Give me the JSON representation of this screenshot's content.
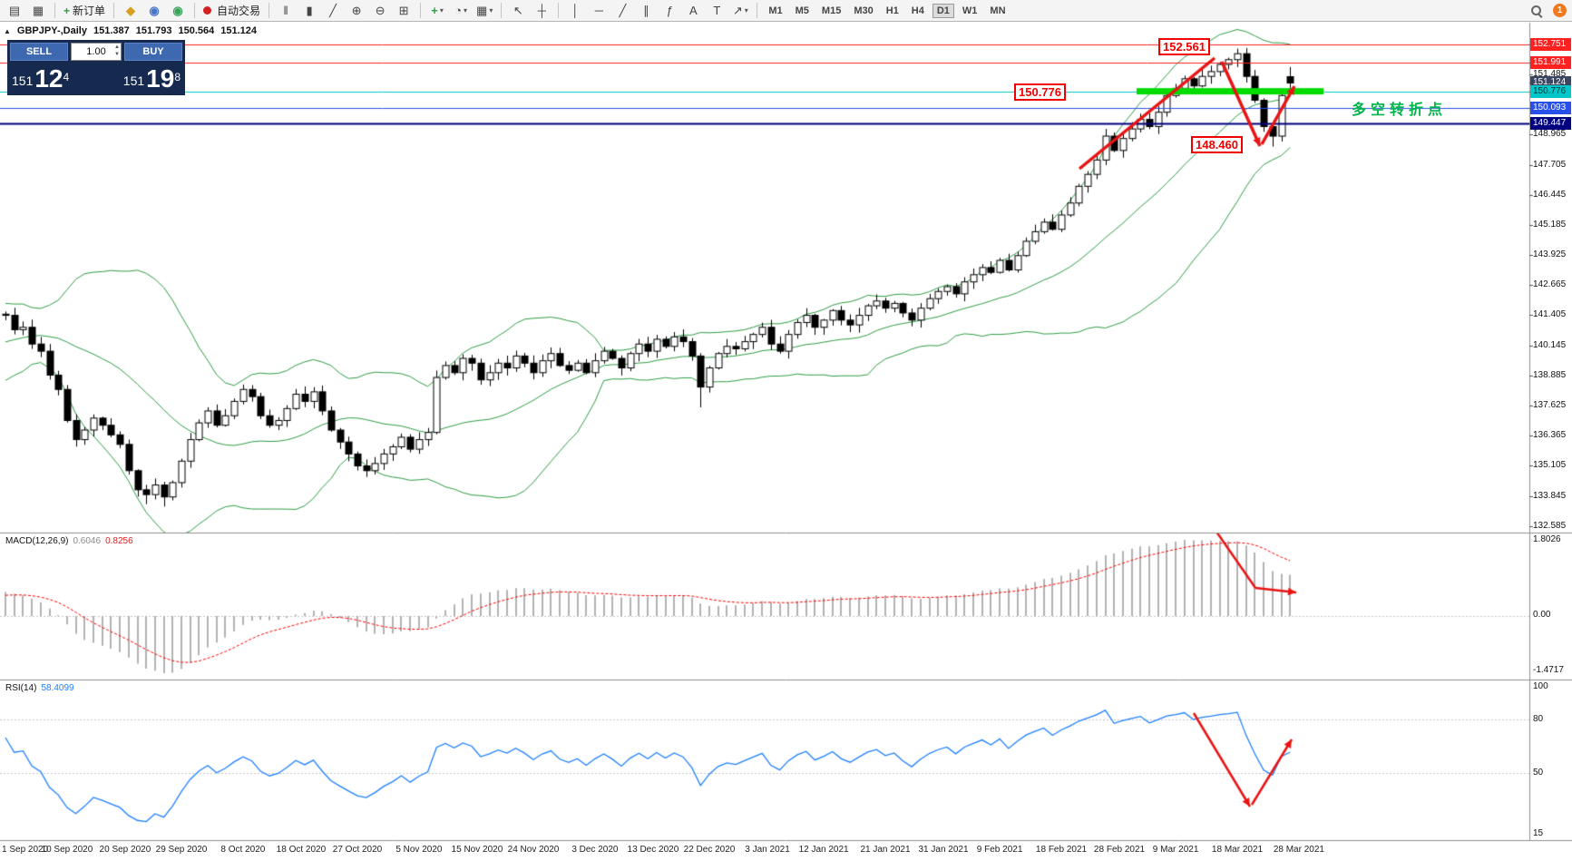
{
  "header": {
    "collapse_icon": "▲",
    "symbol": "GBPJPY-,Daily",
    "open": "151.387",
    "high": "151.793",
    "low": "150.564",
    "close": "151.124"
  },
  "trade_panel": {
    "sell_label": "SELL",
    "buy_label": "BUY",
    "volume": "1.00",
    "sell_price": {
      "prefix": "151",
      "big": "12",
      "sup": "4"
    },
    "buy_price": {
      "prefix": "151",
      "big": "19",
      "sup": "8"
    }
  },
  "annotations": {
    "peak_price": "152.561",
    "support_price": "150.776",
    "pullback_low": "148.460",
    "turning_point_text": "多空转折点"
  },
  "indicators": {
    "macd": {
      "name": "MACD(12,26,9)",
      "main_value": "0.6046",
      "signal_value": "0.8256",
      "scale_max": "1.8026",
      "scale_zero": "0.00",
      "scale_min": "-1.4717"
    },
    "rsi": {
      "name": "RSI(14)",
      "value": "58.4099",
      "scale_labels": [
        {
          "label": "100",
          "value": 100
        },
        {
          "label": "80",
          "value": 80
        },
        {
          "label": "50",
          "value": 50
        },
        {
          "label": "15",
          "value": 15
        }
      ]
    }
  },
  "price_scale": {
    "ticks": [
      151.485,
      148.965,
      147.705,
      146.445,
      145.185,
      143.925,
      142.665,
      141.405,
      140.145,
      138.885,
      137.625,
      136.365,
      135.105,
      133.845,
      132.585
    ],
    "badges": [
      {
        "label": "152.751",
        "price": 152.751,
        "bg": "#ff2020",
        "fg": "#ffffff"
      },
      {
        "label": "151.991",
        "price": 151.991,
        "bg": "#ff2020",
        "fg": "#ffffff"
      },
      {
        "label": "151.124",
        "price": 151.124,
        "bg": "#3a4663",
        "fg": "#ffffff"
      },
      {
        "label": "150.776",
        "price": 150.776,
        "bg": "#00c8c8",
        "fg": "#003333"
      },
      {
        "label": "150.093",
        "price": 150.093,
        "bg": "#2850e8",
        "fg": "#ffffff"
      },
      {
        "label": "149.447",
        "price": 149.447,
        "bg": "#000080",
        "fg": "#ffffff"
      }
    ]
  },
  "toolbar": {
    "window_icons": [
      {
        "name": "chart-window-icon",
        "glyph": "▤"
      },
      {
        "name": "new-chart-icon",
        "glyph": "▦"
      }
    ],
    "new_order": {
      "icon": "+",
      "label": "新订单"
    },
    "app_icons": [
      {
        "name": "history-center-icon",
        "glyph": "◆",
        "color": "#d8a020"
      },
      {
        "name": "accounts-icon",
        "glyph": "◉",
        "color": "#4a76c8"
      },
      {
        "name": "refresh-icon",
        "glyph": "◉",
        "color": "#3aa35a"
      }
    ],
    "autotrading": {
      "label": "自动交易"
    },
    "chart_type_icons": [
      {
        "name": "ohlc-bars-icon",
        "glyph": "‖"
      },
      {
        "name": "candlestick-chart-icon",
        "glyph": "▮"
      },
      {
        "name": "line-chart-icon",
        "glyph": "╱"
      }
    ],
    "zoom_icons": [
      {
        "name": "zoom-in-icon",
        "glyph": "⊕"
      },
      {
        "name": "zoom-out-icon",
        "glyph": "⊖"
      }
    ],
    "tile_icon": {
      "name": "tile-windows-icon",
      "glyph": "⊞"
    },
    "insert_icons": [
      {
        "name": "indicators-icon",
        "glyph": "+",
        "color": "#2da044",
        "caret": true
      },
      {
        "name": "periods-icon",
        "glyph": "◔",
        "caret": true
      },
      {
        "name": "templates-icon",
        "glyph": "▦",
        "caret": true
      }
    ],
    "cursor_icons": [
      {
        "name": "cursor-icon",
        "glyph": "↖"
      },
      {
        "name": "crosshair-icon",
        "glyph": "┼"
      }
    ],
    "draw_icons": [
      {
        "name": "vertical-line-icon",
        "glyph": "│"
      },
      {
        "name": "horizontal-line-icon",
        "glyph": "─"
      },
      {
        "name": "trendline-icon",
        "glyph": "╱"
      },
      {
        "name": "channel-icon",
        "glyph": "∥"
      },
      {
        "name": "fibonacci-icon",
        "glyph": "ƒ"
      },
      {
        "name": "text-icon",
        "glyph": "A"
      },
      {
        "name": "label-icon",
        "glyph": "T"
      },
      {
        "name": "arrows-icon",
        "glyph": "↗",
        "caret": true
      }
    ],
    "timeframes": [
      "M1",
      "M5",
      "M15",
      "M30",
      "H1",
      "H4",
      "D1",
      "W1",
      "MN"
    ],
    "active_timeframe": "D1",
    "notification_count": "1"
  },
  "chart_data": {
    "type": "candlestick",
    "symbol": "GBPJPY-",
    "timeframe": "Daily",
    "current_bar": {
      "open": 151.387,
      "high": 151.793,
      "low": 150.564,
      "close": 151.124
    },
    "warmup_closes": [
      138.6,
      138.9,
      139.2,
      138.8,
      139.5,
      139.9,
      139.6,
      140.2,
      140.0,
      139.7,
      140.3,
      140.6,
      140.2,
      140.8,
      141.0,
      140.7,
      141.2,
      141.0,
      141.3,
      141.45
    ],
    "closes": [
      141.4,
      140.8,
      140.9,
      140.2,
      139.9,
      138.9,
      138.3,
      137.0,
      136.2,
      136.6,
      137.1,
      136.8,
      136.4,
      136.0,
      134.9,
      134.1,
      133.9,
      134.3,
      133.8,
      134.4,
      135.3,
      136.2,
      136.9,
      137.4,
      136.8,
      137.2,
      137.8,
      138.3,
      138.0,
      137.2,
      136.8,
      137.0,
      137.5,
      138.1,
      137.8,
      138.2,
      137.4,
      136.6,
      136.1,
      135.6,
      135.1,
      134.9,
      135.2,
      135.6,
      135.9,
      136.3,
      135.8,
      136.2,
      136.5,
      138.8,
      139.3,
      139.0,
      139.6,
      139.4,
      138.7,
      139.0,
      139.4,
      139.2,
      139.7,
      139.4,
      139.0,
      139.5,
      139.8,
      139.3,
      139.1,
      139.4,
      139.0,
      139.5,
      139.9,
      139.6,
      139.2,
      139.8,
      140.2,
      139.9,
      140.4,
      140.1,
      140.5,
      140.3,
      139.7,
      138.4,
      139.2,
      139.8,
      140.1,
      140.0,
      140.3,
      140.6,
      140.9,
      140.2,
      139.9,
      140.6,
      141.1,
      141.4,
      140.9,
      141.2,
      141.6,
      141.2,
      141.0,
      141.4,
      141.8,
      142.0,
      141.7,
      141.9,
      141.5,
      141.2,
      141.7,
      142.1,
      142.4,
      142.6,
      142.3,
      142.8,
      143.1,
      143.4,
      143.2,
      143.7,
      143.3,
      143.9,
      144.5,
      144.9,
      145.3,
      145.0,
      145.6,
      146.1,
      146.8,
      147.3,
      147.9,
      148.9,
      148.3,
      148.8,
      149.2,
      149.6,
      149.3,
      149.9,
      150.6,
      150.9,
      151.3,
      151.0,
      151.4,
      151.6,
      151.9,
      152.1,
      152.35,
      151.4,
      150.4,
      149.3,
      148.9,
      150.6,
      151.124
    ],
    "overrides": {
      "16": {
        "low": 133.5
      },
      "18": {
        "low": 133.4
      },
      "79": {
        "low": 137.55
      },
      "140": {
        "high": 152.561
      },
      "144": {
        "low": 148.46
      },
      "146": {
        "open": 151.387,
        "high": 151.793,
        "low": 150.564,
        "close": 151.124
      }
    },
    "bollinger": {
      "period": 20,
      "deviation": 2
    },
    "levels": [
      {
        "price": 152.751,
        "color": "#ff2020",
        "width": 1
      },
      {
        "price": 151.991,
        "color": "#ff2020",
        "width": 1
      },
      {
        "price": 150.776,
        "color": "#00c8c8",
        "width": 1
      },
      {
        "price": 150.093,
        "color": "#2850e8",
        "width": 1
      },
      {
        "price": 149.447,
        "color": "#000080",
        "width": 2
      }
    ],
    "support_bar": {
      "price": 150.776,
      "color": "#00dc00"
    },
    "colors": {
      "up_candle": "#ffffff",
      "down_candle": "#000000",
      "outline": "#000000",
      "bollinger": "#2f9e44",
      "macd_hist": "#b2b2b2",
      "macd_signal": "#ff0000",
      "rsi_line": "#2080ff",
      "arrow_red": "#e81414"
    },
    "dates": [
      {
        "label": "1 Sep 2020",
        "i": 0
      },
      {
        "label": "10 Sep 2020",
        "i": 7
      },
      {
        "label": "20 Sep 2020",
        "i": 13.6
      },
      {
        "label": "29 Sep 2020",
        "i": 20
      },
      {
        "label": "8 Oct 2020",
        "i": 27
      },
      {
        "label": "18 Oct 2020",
        "i": 33.6
      },
      {
        "label": "27 Oct 2020",
        "i": 40
      },
      {
        "label": "5 Nov 2020",
        "i": 47
      },
      {
        "label": "15 Nov 2020",
        "i": 53.6
      },
      {
        "label": "24 Nov 2020",
        "i": 60
      },
      {
        "label": "3 Dec 2020",
        "i": 67
      },
      {
        "label": "13 Dec 2020",
        "i": 73.6
      },
      {
        "label": "22 Dec 2020",
        "i": 80
      },
      {
        "label": "3 Jan 2021",
        "i": 86.6
      },
      {
        "label": "12 Jan 2021",
        "i": 93
      },
      {
        "label": "21 Jan 2021",
        "i": 100
      },
      {
        "label": "31 Jan 2021",
        "i": 106.6
      },
      {
        "label": "9 Feb 2021",
        "i": 113
      },
      {
        "label": "18 Feb 2021",
        "i": 120
      },
      {
        "label": "28 Feb 2021",
        "i": 126.6
      },
      {
        "label": "9 Mar 2021",
        "i": 133
      },
      {
        "label": "18 Mar 2021",
        "i": 140
      },
      {
        "label": "28 Mar 2021",
        "i": 147
      }
    ]
  }
}
